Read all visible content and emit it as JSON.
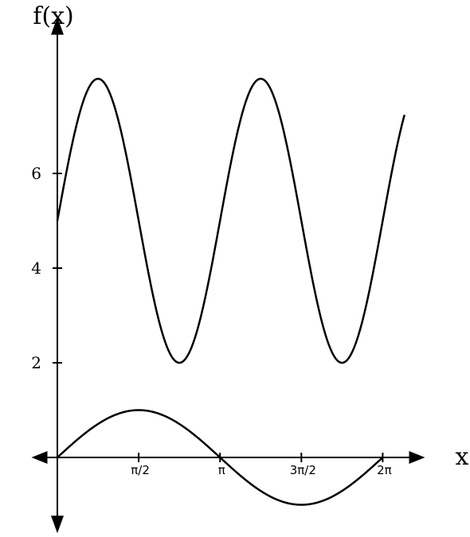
{
  "chart_data": {
    "type": "line",
    "xlabel": "x",
    "ylabel": "f(x)",
    "xlim": [
      -0.5,
      7.1
    ],
    "ylim": [
      -1.6,
      9.3
    ],
    "x_ticks": [
      {
        "value": 1.5708,
        "label": "π/2"
      },
      {
        "value": 3.1416,
        "label": "π"
      },
      {
        "value": 4.7124,
        "label": "3π/2"
      },
      {
        "value": 6.2832,
        "label": "2π"
      }
    ],
    "y_ticks": [
      {
        "value": 2,
        "label": "2"
      },
      {
        "value": 4,
        "label": "4"
      },
      {
        "value": 6,
        "label": "6"
      }
    ],
    "grid": false,
    "series": [
      {
        "function": "5 + 3*sin(2x)",
        "x_range": [
          0,
          6.7
        ],
        "color": "#000000"
      },
      {
        "function": "sin(x)",
        "x_range": [
          0,
          6.2832
        ],
        "color": "#000000"
      }
    ]
  }
}
